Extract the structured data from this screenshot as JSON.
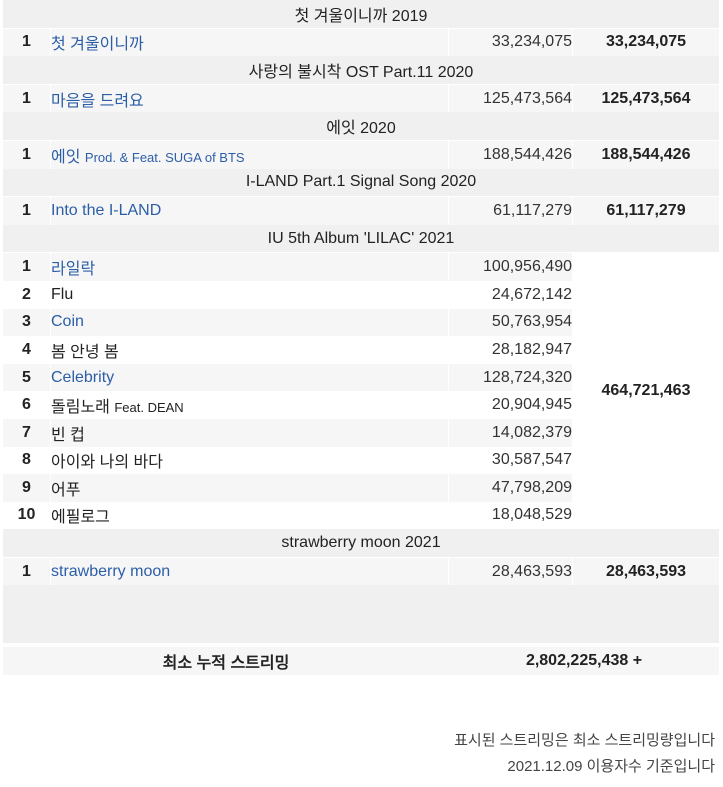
{
  "albums": [
    {
      "header": "첫 겨울이니까 2019",
      "total": "33,234,075",
      "tracks": [
        {
          "rank": "1",
          "title": "첫 겨울이니까",
          "feat": "",
          "streams": "33,234,075",
          "linked": true
        }
      ]
    },
    {
      "header": "사랑의 불시착 OST Part.11 2020",
      "total": "125,473,564",
      "tracks": [
        {
          "rank": "1",
          "title": "마음을 드려요",
          "feat": "",
          "streams": "125,473,564",
          "linked": true
        }
      ]
    },
    {
      "header": "에잇 2020",
      "total": "188,544,426",
      "tracks": [
        {
          "rank": "1",
          "title": "에잇",
          "feat": "Prod. & Feat. SUGA of BTS",
          "streams": "188,544,426",
          "linked": true
        }
      ]
    },
    {
      "header": "I-LAND Part.1 Signal Song 2020",
      "total": "61,117,279",
      "tracks": [
        {
          "rank": "1",
          "title": "Into the I-LAND",
          "feat": "",
          "streams": "61,117,279",
          "linked": true
        }
      ]
    },
    {
      "header": "IU 5th Album 'LILAC' 2021",
      "total": "464,721,463",
      "tracks": [
        {
          "rank": "1",
          "title": "라일락",
          "feat": "",
          "streams": "100,956,490",
          "linked": true
        },
        {
          "rank": "2",
          "title": "Flu",
          "feat": "",
          "streams": "24,672,142",
          "linked": false
        },
        {
          "rank": "3",
          "title": "Coin",
          "feat": "",
          "streams": "50,763,954",
          "linked": true
        },
        {
          "rank": "4",
          "title": "봄 안녕 봄",
          "feat": "",
          "streams": "28,182,947",
          "linked": false
        },
        {
          "rank": "5",
          "title": "Celebrity",
          "feat": "",
          "streams": "128,724,320",
          "linked": true
        },
        {
          "rank": "6",
          "title": "돌림노래",
          "feat": "Feat. DEAN",
          "streams": "20,904,945",
          "linked": false
        },
        {
          "rank": "7",
          "title": "빈 컵",
          "feat": "",
          "streams": "14,082,379",
          "linked": false
        },
        {
          "rank": "8",
          "title": "아이와 나의 바다",
          "feat": "",
          "streams": "30,587,547",
          "linked": false
        },
        {
          "rank": "9",
          "title": "어푸",
          "feat": "",
          "streams": "47,798,209",
          "linked": false
        },
        {
          "rank": "10",
          "title": "에필로그",
          "feat": "",
          "streams": "18,048,529",
          "linked": false
        }
      ]
    },
    {
      "header": "strawberry moon 2021",
      "total": "28,463,593",
      "tracks": [
        {
          "rank": "1",
          "title": "strawberry moon",
          "feat": "",
          "streams": "28,463,593",
          "linked": true
        }
      ]
    }
  ],
  "summary": {
    "label": "최소 누적 스트리밍",
    "value": "2,802,225,438 +"
  },
  "notes": [
    "표시된 스트리밍은 최소 스트리밍량입니다",
    "2021.12.09 이용자수 기준입니다"
  ],
  "colors": {
    "link": "#2c5ea8",
    "header_bg": "#f0f0f0",
    "row_alt_bg": "#f6f6f6"
  }
}
